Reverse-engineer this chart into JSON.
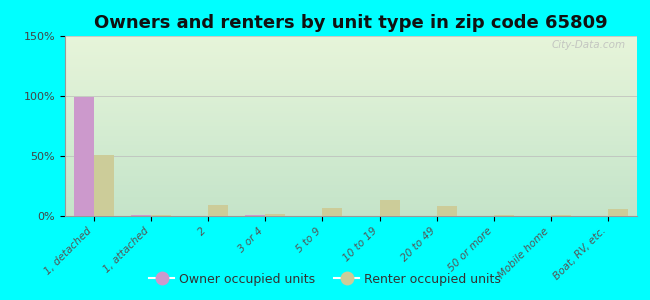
{
  "title": "Owners and renters by unit type in zip code 65809",
  "categories": [
    "1, detached",
    "1, attached",
    "2",
    "3 or 4",
    "5 to 9",
    "10 to 19",
    "20 to 49",
    "50 or more",
    "Mobile home",
    "Boat, RV, etc."
  ],
  "owner_values": [
    99,
    1,
    0,
    1,
    0,
    0,
    0,
    0,
    0,
    0
  ],
  "renter_values": [
    51,
    1,
    9,
    2,
    7,
    13,
    8,
    1,
    1,
    6
  ],
  "owner_color": "#cc99cc",
  "renter_color": "#cccc99",
  "background_color": "#00ffff",
  "ylim": [
    0,
    150
  ],
  "yticks": [
    0,
    50,
    100,
    150
  ],
  "ytick_labels": [
    "0%",
    "50%",
    "100%",
    "150%"
  ],
  "bar_width": 0.35,
  "title_fontsize": 13,
  "watermark": "City-Data.com"
}
